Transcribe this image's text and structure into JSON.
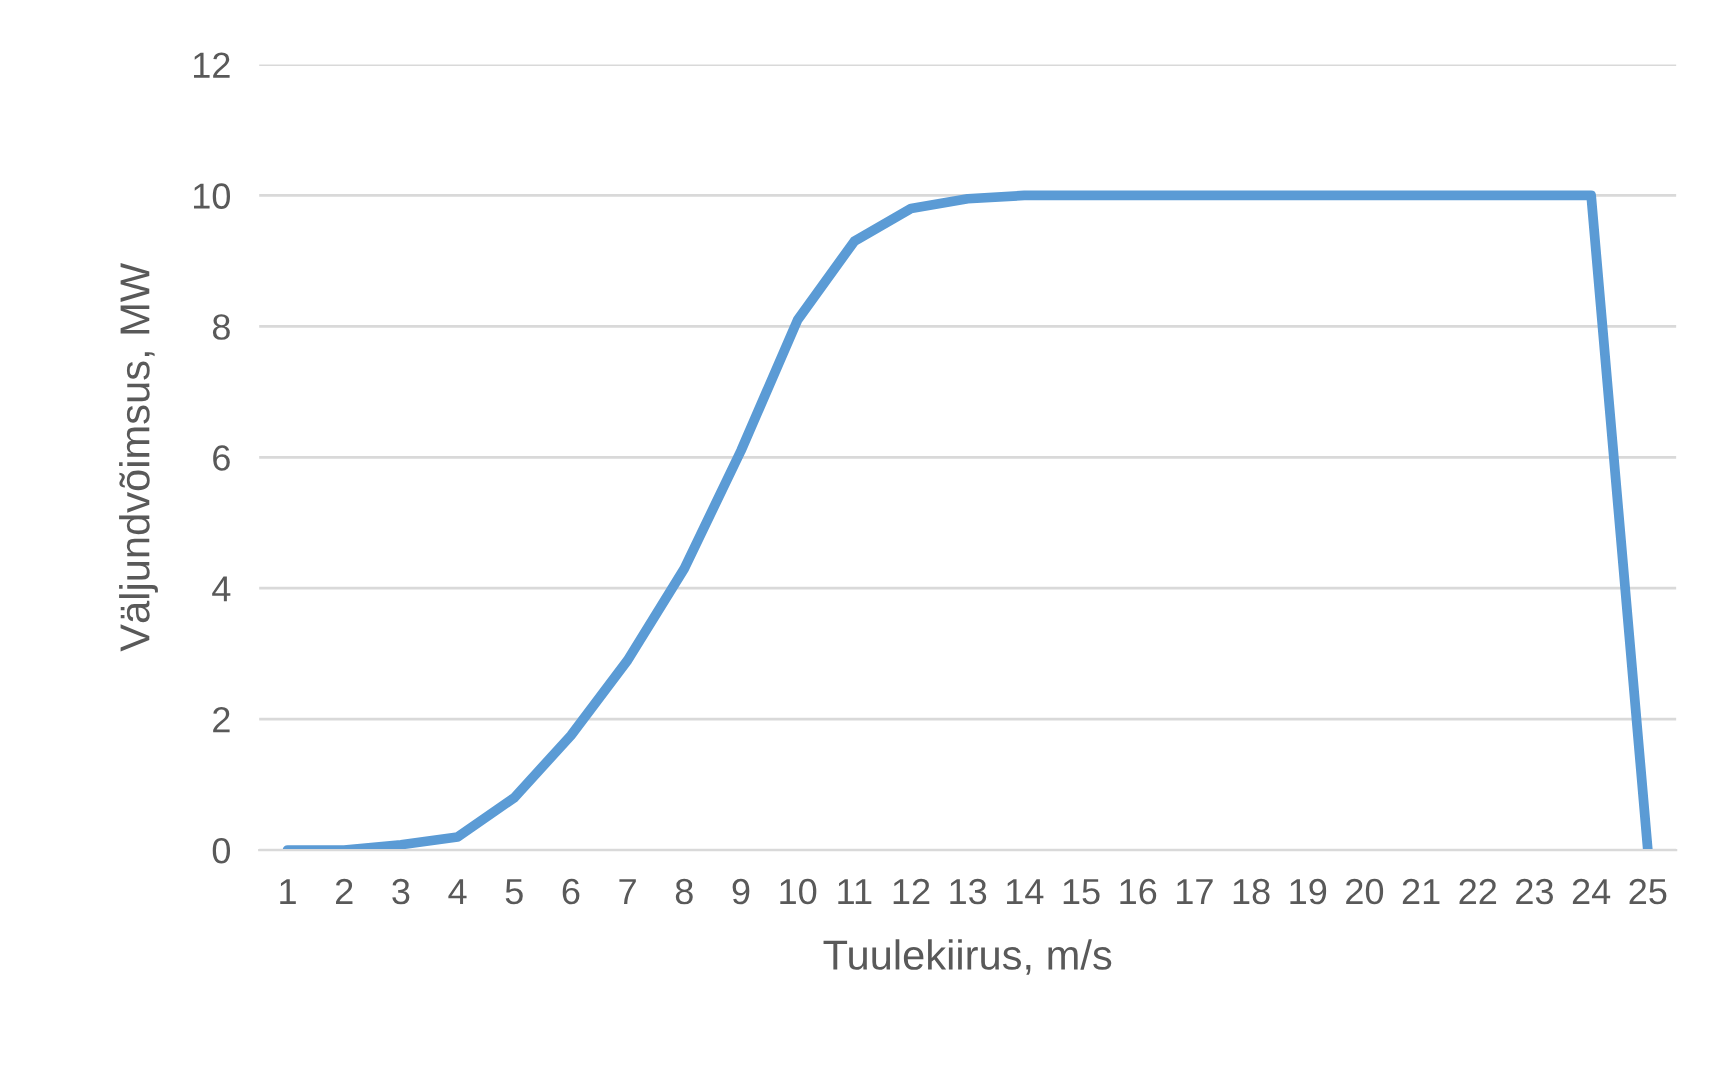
{
  "chart_data": {
    "type": "line",
    "xlabel": "Tuulekiirus, m/s",
    "ylabel": "Väljundvõimsus, MW",
    "categories": [
      "1",
      "2",
      "3",
      "4",
      "5",
      "6",
      "7",
      "8",
      "9",
      "10",
      "11",
      "12",
      "13",
      "14",
      "15",
      "16",
      "17",
      "18",
      "19",
      "20",
      "21",
      "22",
      "23",
      "24",
      "25"
    ],
    "series": [
      {
        "color": "#5b9bd5",
        "values": [
          0,
          0,
          0.08,
          0.2,
          0.8,
          1.75,
          2.9,
          4.3,
          6.1,
          8.1,
          9.3,
          9.8,
          9.95,
          10,
          10,
          10,
          10,
          10,
          10,
          10,
          10,
          10,
          10,
          10,
          0
        ]
      }
    ],
    "ylim": [
      0,
      12
    ],
    "yticks": [
      0,
      2,
      4,
      6,
      8,
      10,
      12
    ],
    "grid": "y",
    "marker": "none",
    "line_style": "solid"
  }
}
